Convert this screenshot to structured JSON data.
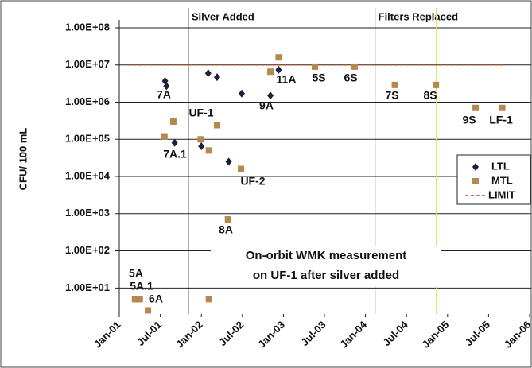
{
  "chart_data": {
    "type": "scatter",
    "y_label": "CFU/ 100 mL",
    "log_y": true,
    "grid": true,
    "xlim": [
      0,
      60
    ],
    "ylim": [
      2,
      100000000
    ],
    "xticks": [
      {
        "value": 0,
        "label": "Jan-01"
      },
      {
        "value": 6,
        "label": "Jul-01"
      },
      {
        "value": 12,
        "label": "Jan-02"
      },
      {
        "value": 18,
        "label": "Jul-02"
      },
      {
        "value": 24,
        "label": "Jan-03"
      },
      {
        "value": 30,
        "label": "Jul-03"
      },
      {
        "value": 36,
        "label": "Jan-04"
      },
      {
        "value": 42,
        "label": "Jul-04"
      },
      {
        "value": 48,
        "label": "Jan-05"
      },
      {
        "value": 54,
        "label": "Jul-05"
      },
      {
        "value": 60,
        "label": "Jan-06"
      }
    ],
    "yticks": [
      {
        "value": 100000000,
        "label": "1.00E+08"
      },
      {
        "value": 10000000,
        "label": "1.00E+07"
      },
      {
        "value": 1000000,
        "label": "1.00E+06"
      },
      {
        "value": 100000,
        "label": "1.00E+05"
      },
      {
        "value": 10000,
        "label": "1.00E+04"
      },
      {
        "value": 1000,
        "label": "1.00E+03"
      },
      {
        "value": 100,
        "label": "1.00E+02"
      },
      {
        "value": 10,
        "label": "1.00E+01"
      }
    ],
    "series": [
      {
        "name": "LTL",
        "color": "#1a1f3a",
        "marker": "diamond",
        "x": [
          6.7,
          6.9,
          8.1,
          12.0,
          13.0,
          14.3,
          16.0,
          17.9,
          22.1,
          23.3
        ],
        "values": [
          3700000,
          2700000,
          80000,
          65000,
          6000000,
          4700000,
          25000,
          1700000,
          1500000,
          7400000
        ]
      },
      {
        "name": "MTL",
        "color": "#b5894e",
        "marker": "square",
        "x": [
          2.3,
          2.6,
          3.0,
          4.2,
          6.6,
          7.9,
          11.9,
          13.1,
          14.3,
          17.8,
          15.9,
          13.1,
          22.1,
          23.3,
          28.6,
          34.4,
          40.3,
          46.3,
          52.1,
          56.0
        ],
        "values": [
          5,
          5,
          5,
          2.5,
          120000,
          300000,
          100000,
          50000,
          240000,
          16000,
          700,
          5,
          6600000,
          16000000,
          9000000,
          9000000,
          2900000,
          2900000,
          700000,
          700000
        ]
      }
    ],
    "limit": {
      "name": "LIMIT",
      "color": "#a0522d",
      "value": 10000000
    },
    "events": [
      {
        "name": "Silver Added",
        "x": 10.1
      },
      {
        "name": "Filters Replaced",
        "x": 37.4
      }
    ],
    "marker_line": {
      "x": 46.4,
      "color": "#f5d76e"
    },
    "annotations": [
      "7A",
      "UF-1",
      "7A.1",
      "UF-2",
      "8A",
      "9A",
      "11A",
      "5S",
      "6S",
      "7S",
      "8S",
      "9S",
      "LF-1",
      "5A",
      "5A.1",
      "6A"
    ],
    "note": [
      "On-orbit WMK measurement",
      "on UF-1 after silver added"
    ]
  }
}
